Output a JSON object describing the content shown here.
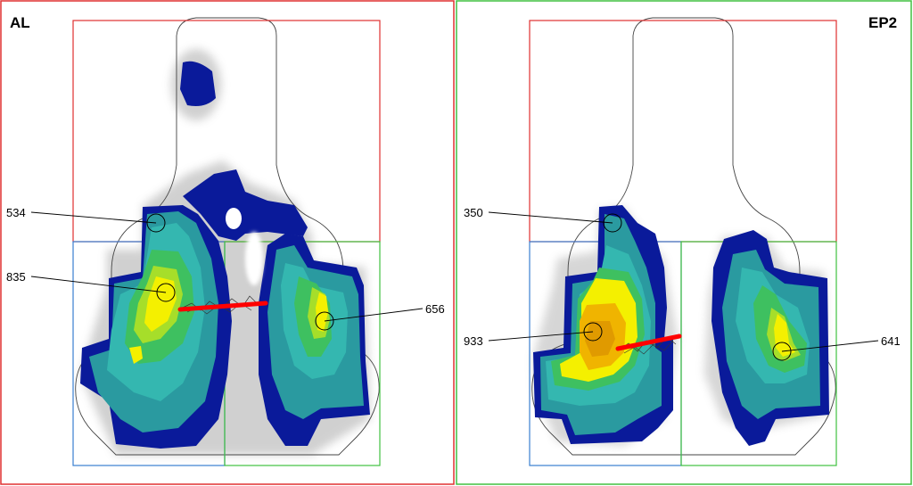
{
  "colors": {
    "left_frame": "#e03030",
    "right_frame": "#40c040",
    "zone_red": "#e03030",
    "zone_blue": "#3a7fd0",
    "zone_green": "#40c040",
    "heat_navy": "#0a1a9a",
    "heat_blue": "#1f4fb8",
    "heat_teal": "#2a9aa0",
    "heat_aqua": "#34b7b0",
    "heat_green": "#3ec060",
    "heat_lime": "#a6de2a",
    "heat_yellow": "#f4f000",
    "heat_orange": "#f0b400",
    "heat_deep": "#e09a00",
    "marker_red": "#ff0000"
  },
  "panels": [
    {
      "title": "AL",
      "labels": [
        {
          "text": "534"
        },
        {
          "text": "835"
        },
        {
          "text": "656"
        }
      ]
    },
    {
      "title": "EP2",
      "labels": [
        {
          "text": "350"
        },
        {
          "text": "933"
        },
        {
          "text": "641"
        }
      ]
    }
  ]
}
